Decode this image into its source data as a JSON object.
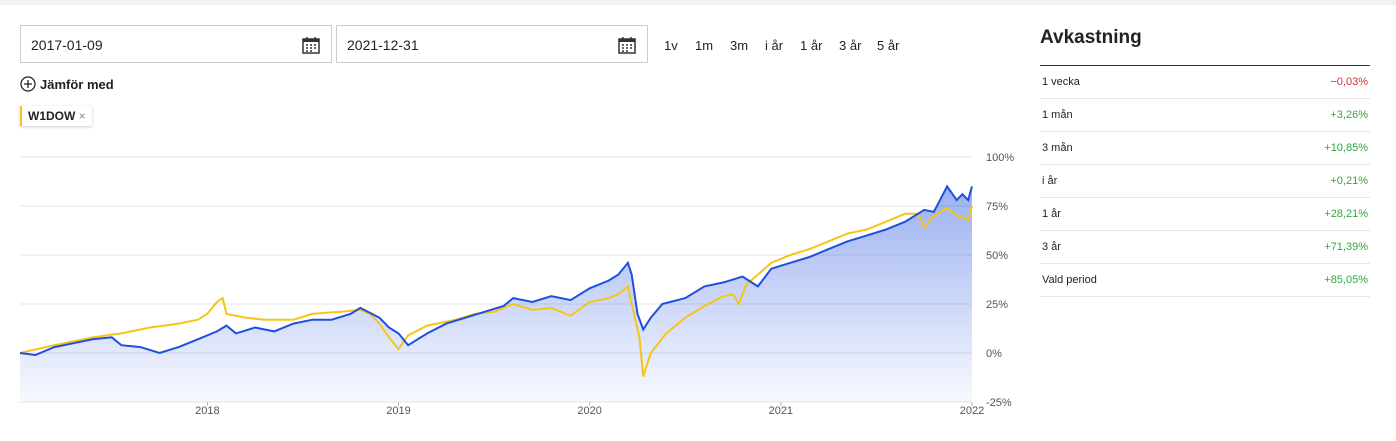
{
  "inputs": {
    "from": "2017-01-09",
    "to": "2021-12-31"
  },
  "periods": [
    "1v",
    "1m",
    "3m",
    "i år",
    "1 år",
    "3 år",
    "5 år"
  ],
  "compare": "Jämför med",
  "returns": {
    "title": "Avkastning",
    "rows": [
      {
        "period": "1 vecka",
        "value": "−0,03%",
        "color": "#d32f2f"
      },
      {
        "period": "1 mån",
        "value": "+3,26%",
        "color": "#2eaa3c"
      },
      {
        "period": "3 mån",
        "value": "+10,85%",
        "color": "#2eaa3c"
      },
      {
        "period": "i år",
        "value": "+0,21%",
        "color": "#2eaa3c"
      },
      {
        "period": "1 år",
        "value": "+28,21%",
        "color": "#2eaa3c"
      },
      {
        "period": "3 år",
        "value": "+71,39%",
        "color": "#2eaa3c"
      },
      {
        "period": "Vald period",
        "value": "+85,05%",
        "color": "#2eaa3c"
      }
    ]
  },
  "chart_data": {
    "type": "line",
    "xlim": [
      2017.02,
      2022.0
    ],
    "xticks": [
      2018,
      2019,
      2020,
      2021,
      2022
    ],
    "ylim": [
      -25,
      100
    ],
    "yticks": [
      {
        "value": -25,
        "label": "-25%"
      },
      {
        "value": 0,
        "label": "0%"
      },
      {
        "value": 25,
        "label": "25%"
      },
      {
        "value": 50,
        "label": "50%"
      },
      {
        "value": 75,
        "label": "75%"
      },
      {
        "value": 100,
        "label": "100%"
      }
    ],
    "grid": true,
    "series": [
      {
        "color": "#1f4fe0",
        "area": true,
        "x": [
          2017.02,
          2017.1,
          2017.2,
          2017.3,
          2017.4,
          2017.5,
          2017.55,
          2017.65,
          2017.75,
          2017.85,
          2017.95,
          2018.05,
          2018.1,
          2018.15,
          2018.25,
          2018.35,
          2018.45,
          2018.55,
          2018.65,
          2018.75,
          2018.8,
          2018.9,
          2018.95,
          2019.0,
          2019.05,
          2019.15,
          2019.25,
          2019.35,
          2019.45,
          2019.55,
          2019.6,
          2019.7,
          2019.8,
          2019.9,
          2020.0,
          2020.1,
          2020.15,
          2020.2,
          2020.22,
          2020.25,
          2020.28,
          2020.32,
          2020.38,
          2020.5,
          2020.6,
          2020.7,
          2020.8,
          2020.88,
          2020.95,
          2021.05,
          2021.15,
          2021.25,
          2021.35,
          2021.45,
          2021.55,
          2021.65,
          2021.7,
          2021.75,
          2021.8,
          2021.87,
          2021.92,
          2021.95,
          2021.98,
          2022.0
        ],
        "values": [
          0,
          -1,
          3,
          5,
          7,
          8,
          4,
          3,
          0,
          3,
          7,
          11,
          14,
          10,
          13,
          11,
          15,
          17,
          17,
          20,
          23,
          18,
          13,
          10,
          4,
          10,
          15,
          18,
          21,
          24,
          28,
          26,
          29,
          27,
          33,
          37,
          40,
          46,
          40,
          20,
          12,
          18,
          25,
          28,
          34,
          36,
          39,
          34,
          43,
          46,
          49,
          53,
          57,
          60,
          63,
          67,
          70,
          73,
          72,
          85,
          78,
          81,
          78,
          85
        ]
      },
      {
        "name": "W1DOW",
        "color": "#f5c518",
        "x": [
          2017.02,
          2017.2,
          2017.4,
          2017.55,
          2017.7,
          2017.85,
          2017.95,
          2018.0,
          2018.05,
          2018.08,
          2018.1,
          2018.2,
          2018.3,
          2018.45,
          2018.55,
          2018.7,
          2018.8,
          2018.85,
          2018.9,
          2018.95,
          2019.0,
          2019.05,
          2019.15,
          2019.3,
          2019.4,
          2019.5,
          2019.6,
          2019.7,
          2019.8,
          2019.9,
          2020.0,
          2020.1,
          2020.15,
          2020.2,
          2020.22,
          2020.26,
          2020.28,
          2020.32,
          2020.4,
          2020.5,
          2020.6,
          2020.7,
          2020.75,
          2020.78,
          2020.82,
          2020.88,
          2020.95,
          2021.05,
          2021.15,
          2021.25,
          2021.35,
          2021.45,
          2021.55,
          2021.65,
          2021.72,
          2021.75,
          2021.8,
          2021.87,
          2021.92,
          2021.98,
          2022.0
        ],
        "values": [
          0,
          4,
          8,
          10,
          13,
          15,
          17,
          20,
          26,
          28,
          20,
          18,
          17,
          17,
          20,
          21,
          22,
          20,
          15,
          8,
          2,
          9,
          14,
          17,
          20,
          21,
          25,
          22,
          23,
          19,
          26,
          28,
          30,
          34,
          25,
          8,
          -12,
          0,
          10,
          18,
          24,
          29,
          30,
          25,
          35,
          40,
          46,
          50,
          53,
          57,
          61,
          63,
          67,
          71,
          71,
          64,
          70,
          74,
          70,
          68,
          75
        ]
      }
    ]
  }
}
